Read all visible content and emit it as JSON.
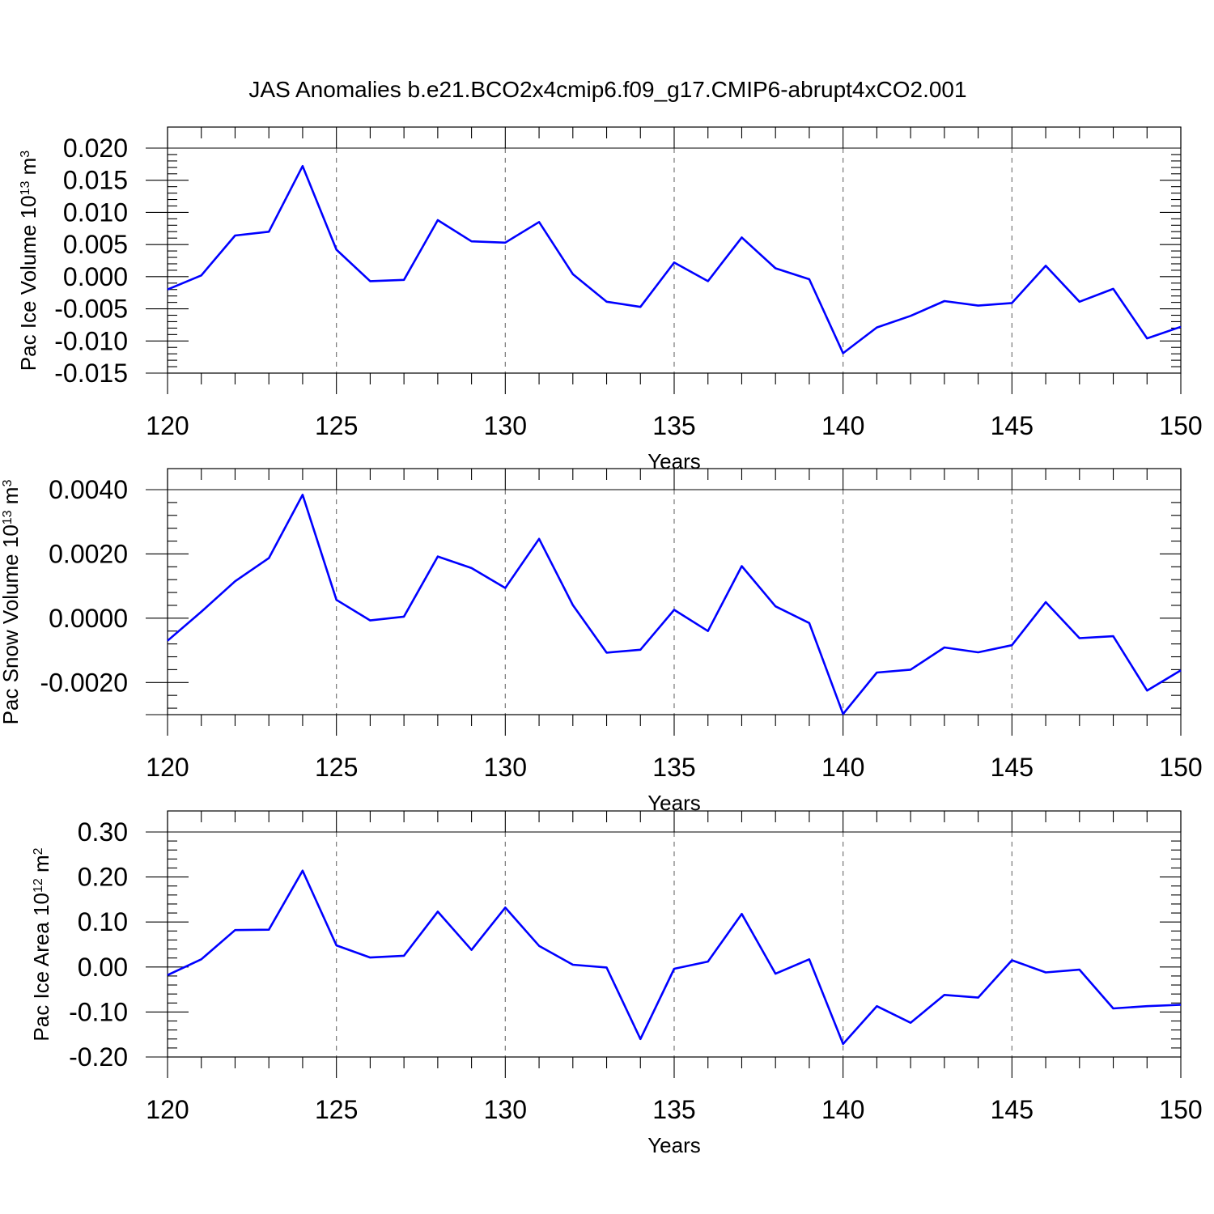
{
  "figure": {
    "title": "JAS Anomalies b.e21.BCO2x4cmip6.f09_g17.CMIP6-abrupt4xCO2.001",
    "line_color": "#0000ff"
  },
  "chart_data": [
    {
      "type": "line",
      "title": "",
      "xlabel": "Years",
      "ylabel": "Pac Ice Volume 10",
      "ylabel_exponent": "13",
      "ylabel_unit": " m",
      "ylabel_unit_exponent": "3",
      "xlim": [
        120,
        150
      ],
      "ylim": [
        -0.015,
        0.02
      ],
      "xticks": [
        "120",
        "125",
        "130",
        "135",
        "140",
        "145",
        "150"
      ],
      "yticks": [
        "0.020",
        "0.015",
        "0.010",
        "0.005",
        "0.000",
        "-0.005",
        "-0.010",
        "-0.015"
      ],
      "grid": "vertical dashed at 125, 130, 135, 140, 145",
      "x": [
        120,
        121,
        122,
        123,
        124,
        125,
        126,
        127,
        128,
        129,
        130,
        131,
        132,
        133,
        134,
        135,
        136,
        137,
        138,
        139,
        140,
        141,
        142,
        143,
        144,
        145,
        146,
        147,
        148,
        149,
        150
      ],
      "series": [
        {
          "values": [
            -0.002,
            0.0002,
            0.0064,
            0.007,
            0.0172,
            0.0042,
            -0.0007,
            -0.0005,
            0.0088,
            0.0055,
            0.0053,
            0.0085,
            0.0004,
            -0.0039,
            -0.0047,
            0.0022,
            -0.0007,
            0.0061,
            0.0013,
            -0.0004,
            -0.0119,
            -0.0079,
            -0.0061,
            -0.0038,
            -0.0045,
            -0.0041,
            0.0017,
            -0.0039,
            -0.0019,
            -0.0096,
            -0.0078
          ]
        }
      ]
    },
    {
      "type": "line",
      "title": "",
      "xlabel": "Years",
      "ylabel": "Pac Snow Volume 10",
      "ylabel_exponent": "13",
      "ylabel_unit": " m",
      "ylabel_unit_exponent": "3",
      "xlim": [
        120,
        150
      ],
      "ylim": [
        -0.003,
        0.0046
      ],
      "xticks": [
        "120",
        "125",
        "130",
        "135",
        "140",
        "145",
        "150"
      ],
      "yticks": [
        "0.0040",
        "0.0020",
        "0.0000",
        "-0.0020"
      ],
      "grid": "vertical dashed at 125, 130, 135, 140, 145",
      "x": [
        120,
        121,
        122,
        123,
        124,
        125,
        126,
        127,
        128,
        129,
        130,
        131,
        132,
        133,
        134,
        135,
        136,
        137,
        138,
        139,
        140,
        141,
        142,
        143,
        144,
        145,
        146,
        147,
        148,
        149,
        150
      ],
      "series": [
        {
          "values": [
            -0.0007,
            0.0002,
            0.00115,
            0.00187,
            0.00384,
            0.00057,
            -7e-05,
            5e-05,
            0.00192,
            0.00156,
            0.00094,
            0.00247,
            0.00041,
            -0.00107,
            -0.00098,
            0.00026,
            -0.0004,
            0.00162,
            0.00037,
            -0.00015,
            -0.00298,
            -0.00169,
            -0.0016,
            -0.00091,
            -0.00106,
            -0.00084,
            0.0005,
            -0.00062,
            -0.00056,
            -0.00225,
            -0.00162
          ]
        }
      ]
    },
    {
      "type": "line",
      "title": "",
      "xlabel": "Years",
      "ylabel": "Pac Ice Area 10",
      "ylabel_exponent": "12",
      "ylabel_unit": " m",
      "ylabel_unit_exponent": "2",
      "xlim": [
        120,
        150
      ],
      "ylim": [
        -0.2,
        0.3
      ],
      "xticks": [
        "120",
        "125",
        "130",
        "135",
        "140",
        "145",
        "150"
      ],
      "yticks": [
        "0.30",
        "0.20",
        "0.10",
        "0.00",
        "-0.10",
        "-0.20"
      ],
      "grid": "vertical dashed at 125, 130, 135, 140, 145",
      "x": [
        120,
        121,
        122,
        123,
        124,
        125,
        126,
        127,
        128,
        129,
        130,
        131,
        132,
        133,
        134,
        135,
        136,
        137,
        138,
        139,
        140,
        141,
        142,
        143,
        144,
        145,
        146,
        147,
        148,
        149,
        150
      ],
      "series": [
        {
          "values": [
            -0.018,
            0.017,
            0.082,
            0.083,
            0.214,
            0.048,
            0.021,
            0.025,
            0.123,
            0.038,
            0.132,
            0.047,
            0.005,
            -0.001,
            -0.16,
            -0.004,
            0.012,
            0.118,
            -0.015,
            0.017,
            -0.171,
            -0.087,
            -0.124,
            -0.062,
            -0.068,
            0.015,
            -0.012,
            -0.006,
            -0.092,
            -0.087,
            -0.084
          ]
        }
      ]
    }
  ]
}
